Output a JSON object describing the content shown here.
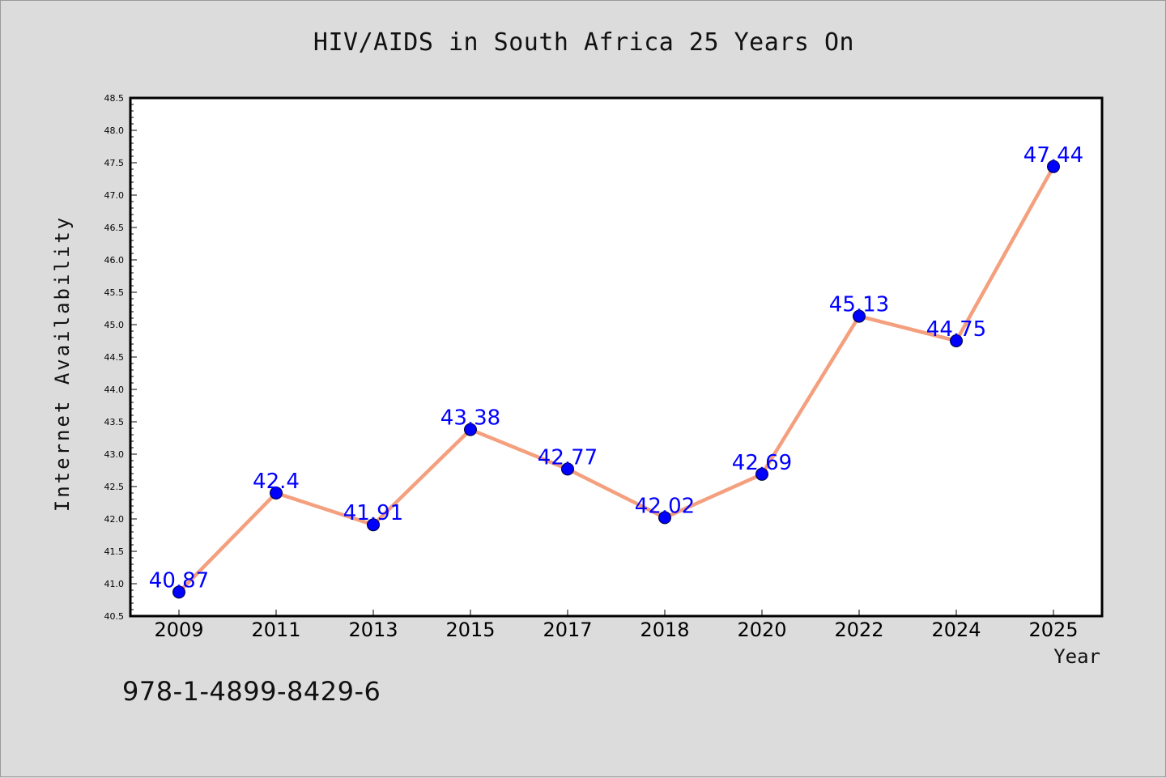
{
  "chart_data": {
    "type": "line",
    "title": "HIV/AIDS in South Africa 25 Years On",
    "xlabel": "Year",
    "ylabel": "Internet Availability",
    "categories": [
      "2009",
      "2011",
      "2013",
      "2015",
      "2017",
      "2018",
      "2020",
      "2022",
      "2024",
      "2025"
    ],
    "series": [
      {
        "values": [
          40.87,
          42.4,
          41.91,
          43.38,
          42.77,
          42.02,
          42.69,
          45.13,
          44.75,
          47.44
        ],
        "labels": [
          "40.87",
          "42.4",
          "41.91",
          "43.38",
          "42.77",
          "42.02",
          "42.69",
          "45.13",
          "44.75",
          "47.44"
        ]
      }
    ],
    "ylim": [
      40.5,
      48.5
    ],
    "yticks": [
      "40.5",
      "41.0",
      "41.5",
      "42.0",
      "42.5",
      "43.0",
      "43.5",
      "44.0",
      "44.5",
      "45.0",
      "45.5",
      "46.0",
      "46.5",
      "47.0",
      "47.5",
      "48.0",
      "48.5"
    ],
    "grid": false,
    "colors": {
      "line": "#f4a07e",
      "marker": "#0000ff",
      "labels": "#0000ff",
      "background": "#dcdcdc",
      "plot_background": "#ffffff"
    }
  },
  "annotation": {
    "isbn": "978-1-4899-8429-6"
  }
}
